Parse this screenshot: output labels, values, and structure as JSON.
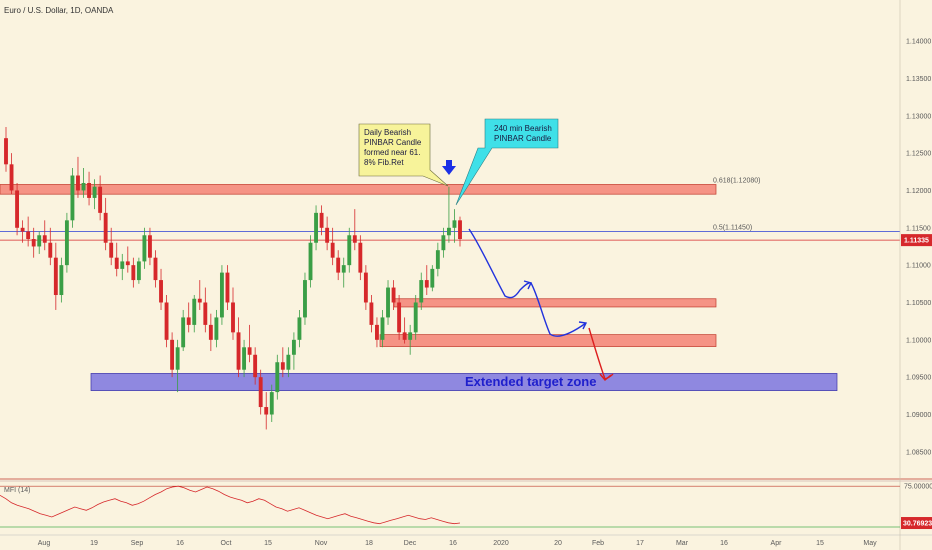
{
  "chart_data": [
    {
      "type": "candlestick",
      "title": "Euro / U.S. Dollar, 1D, OANDA",
      "price_axis": {
        "ticks": [
          "1.14000",
          "1.13500",
          "1.13000",
          "1.12500",
          "1.12000",
          "1.11500",
          "1.11000",
          "1.10500",
          "1.10000",
          "1.09500",
          "1.09000",
          "1.08500"
        ],
        "tick_values": [
          1.14,
          1.135,
          1.13,
          1.125,
          1.12,
          1.115,
          1.11,
          1.105,
          1.1,
          1.095,
          1.09,
          1.085
        ],
        "ylim": [
          1.0815,
          1.1455
        ],
        "last_price_label": "1.11335",
        "last_price": 1.11335
      },
      "time_axis": {
        "labels": [
          "Aug",
          "19",
          "Sep",
          "16",
          "Oct",
          "15",
          "Nov",
          "18",
          "Dec",
          "16",
          "2020",
          "20",
          "Feb",
          "17",
          "Mar",
          "16",
          "Apr",
          "15",
          "May"
        ]
      },
      "candles": [
        {
          "o": 1.127,
          "h": 1.1285,
          "l": 1.1225,
          "c": 1.1235
        },
        {
          "o": 1.1235,
          "h": 1.125,
          "l": 1.1195,
          "c": 1.12
        },
        {
          "o": 1.12,
          "h": 1.121,
          "l": 1.114,
          "c": 1.115
        },
        {
          "o": 1.115,
          "h": 1.116,
          "l": 1.113,
          "c": 1.1145
        },
        {
          "o": 1.1145,
          "h": 1.1165,
          "l": 1.1125,
          "c": 1.1135
        },
        {
          "o": 1.1135,
          "h": 1.115,
          "l": 1.111,
          "c": 1.1125
        },
        {
          "o": 1.1125,
          "h": 1.1145,
          "l": 1.1115,
          "c": 1.114
        },
        {
          "o": 1.114,
          "h": 1.116,
          "l": 1.112,
          "c": 1.113
        },
        {
          "o": 1.113,
          "h": 1.115,
          "l": 1.11,
          "c": 1.111
        },
        {
          "o": 1.111,
          "h": 1.113,
          "l": 1.104,
          "c": 1.106
        },
        {
          "o": 1.106,
          "h": 1.111,
          "l": 1.105,
          "c": 1.11
        },
        {
          "o": 1.11,
          "h": 1.117,
          "l": 1.109,
          "c": 1.116
        },
        {
          "o": 1.116,
          "h": 1.123,
          "l": 1.115,
          "c": 1.122
        },
        {
          "o": 1.122,
          "h": 1.1245,
          "l": 1.119,
          "c": 1.12
        },
        {
          "o": 1.12,
          "h": 1.123,
          "l": 1.119,
          "c": 1.121
        },
        {
          "o": 1.121,
          "h": 1.1225,
          "l": 1.118,
          "c": 1.119
        },
        {
          "o": 1.119,
          "h": 1.1215,
          "l": 1.1175,
          "c": 1.1205
        },
        {
          "o": 1.1205,
          "h": 1.122,
          "l": 1.116,
          "c": 1.117
        },
        {
          "o": 1.117,
          "h": 1.119,
          "l": 1.112,
          "c": 1.113
        },
        {
          "o": 1.113,
          "h": 1.115,
          "l": 1.11,
          "c": 1.111
        },
        {
          "o": 1.111,
          "h": 1.113,
          "l": 1.1085,
          "c": 1.1095
        },
        {
          "o": 1.1095,
          "h": 1.1115,
          "l": 1.108,
          "c": 1.1105
        },
        {
          "o": 1.1105,
          "h": 1.1125,
          "l": 1.109,
          "c": 1.11
        },
        {
          "o": 1.11,
          "h": 1.111,
          "l": 1.107,
          "c": 1.108
        },
        {
          "o": 1.108,
          "h": 1.111,
          "l": 1.1075,
          "c": 1.1105
        },
        {
          "o": 1.1105,
          "h": 1.115,
          "l": 1.1095,
          "c": 1.114
        },
        {
          "o": 1.114,
          "h": 1.115,
          "l": 1.11,
          "c": 1.111
        },
        {
          "o": 1.111,
          "h": 1.112,
          "l": 1.107,
          "c": 1.108
        },
        {
          "o": 1.108,
          "h": 1.1095,
          "l": 1.104,
          "c": 1.105
        },
        {
          "o": 1.105,
          "h": 1.106,
          "l": 1.099,
          "c": 1.1
        },
        {
          "o": 1.1,
          "h": 1.101,
          "l": 1.095,
          "c": 1.096
        },
        {
          "o": 1.096,
          "h": 1.1,
          "l": 1.093,
          "c": 1.099
        },
        {
          "o": 1.099,
          "h": 1.104,
          "l": 1.0985,
          "c": 1.103
        },
        {
          "o": 1.103,
          "h": 1.105,
          "l": 1.101,
          "c": 1.102
        },
        {
          "o": 1.102,
          "h": 1.106,
          "l": 1.101,
          "c": 1.1055
        },
        {
          "o": 1.1055,
          "h": 1.108,
          "l": 1.104,
          "c": 1.105
        },
        {
          "o": 1.105,
          "h": 1.107,
          "l": 1.101,
          "c": 1.102
        },
        {
          "o": 1.102,
          "h": 1.1035,
          "l": 1.0985,
          "c": 1.1
        },
        {
          "o": 1.1,
          "h": 1.104,
          "l": 1.099,
          "c": 1.103
        },
        {
          "o": 1.103,
          "h": 1.11,
          "l": 1.102,
          "c": 1.109
        },
        {
          "o": 1.109,
          "h": 1.11,
          "l": 1.104,
          "c": 1.105
        },
        {
          "o": 1.105,
          "h": 1.107,
          "l": 1.1,
          "c": 1.101
        },
        {
          "o": 1.101,
          "h": 1.103,
          "l": 1.095,
          "c": 1.096
        },
        {
          "o": 1.096,
          "h": 1.1,
          "l": 1.095,
          "c": 1.099
        },
        {
          "o": 1.099,
          "h": 1.102,
          "l": 1.097,
          "c": 1.098
        },
        {
          "o": 1.098,
          "h": 1.099,
          "l": 1.094,
          "c": 1.095
        },
        {
          "o": 1.095,
          "h": 1.096,
          "l": 1.09,
          "c": 1.091
        },
        {
          "o": 1.091,
          "h": 1.093,
          "l": 1.088,
          "c": 1.09
        },
        {
          "o": 1.09,
          "h": 1.094,
          "l": 1.089,
          "c": 1.093
        },
        {
          "o": 1.093,
          "h": 1.098,
          "l": 1.092,
          "c": 1.097
        },
        {
          "o": 1.097,
          "h": 1.099,
          "l": 1.095,
          "c": 1.096
        },
        {
          "o": 1.096,
          "h": 1.099,
          "l": 1.095,
          "c": 1.098
        },
        {
          "o": 1.098,
          "h": 1.101,
          "l": 1.096,
          "c": 1.1
        },
        {
          "o": 1.1,
          "h": 1.104,
          "l": 1.099,
          "c": 1.103
        },
        {
          "o": 1.103,
          "h": 1.109,
          "l": 1.102,
          "c": 1.108
        },
        {
          "o": 1.108,
          "h": 1.114,
          "l": 1.107,
          "c": 1.113
        },
        {
          "o": 1.113,
          "h": 1.118,
          "l": 1.112,
          "c": 1.117
        },
        {
          "o": 1.117,
          "h": 1.118,
          "l": 1.114,
          "c": 1.115
        },
        {
          "o": 1.115,
          "h": 1.1165,
          "l": 1.112,
          "c": 1.113
        },
        {
          "o": 1.113,
          "h": 1.115,
          "l": 1.11,
          "c": 1.111
        },
        {
          "o": 1.111,
          "h": 1.112,
          "l": 1.108,
          "c": 1.109
        },
        {
          "o": 1.109,
          "h": 1.111,
          "l": 1.107,
          "c": 1.11
        },
        {
          "o": 1.11,
          "h": 1.115,
          "l": 1.109,
          "c": 1.114
        },
        {
          "o": 1.114,
          "h": 1.1175,
          "l": 1.112,
          "c": 1.113
        },
        {
          "o": 1.113,
          "h": 1.114,
          "l": 1.108,
          "c": 1.109
        },
        {
          "o": 1.109,
          "h": 1.11,
          "l": 1.104,
          "c": 1.105
        },
        {
          "o": 1.105,
          "h": 1.106,
          "l": 1.101,
          "c": 1.102
        },
        {
          "o": 1.102,
          "h": 1.103,
          "l": 1.099,
          "c": 1.1
        },
        {
          "o": 1.1,
          "h": 1.104,
          "l": 1.099,
          "c": 1.103
        },
        {
          "o": 1.103,
          "h": 1.108,
          "l": 1.102,
          "c": 1.107
        },
        {
          "o": 1.107,
          "h": 1.108,
          "l": 1.104,
          "c": 1.105
        },
        {
          "o": 1.105,
          "h": 1.106,
          "l": 1.1,
          "c": 1.101
        },
        {
          "o": 1.101,
          "h": 1.103,
          "l": 1.0995,
          "c": 1.1
        },
        {
          "o": 1.1,
          "h": 1.102,
          "l": 1.098,
          "c": 1.101
        },
        {
          "o": 1.101,
          "h": 1.106,
          "l": 1.1,
          "c": 1.105
        },
        {
          "o": 1.105,
          "h": 1.109,
          "l": 1.104,
          "c": 1.108
        },
        {
          "o": 1.108,
          "h": 1.11,
          "l": 1.106,
          "c": 1.107
        },
        {
          "o": 1.107,
          "h": 1.11,
          "l": 1.1065,
          "c": 1.1095
        },
        {
          "o": 1.1095,
          "h": 1.113,
          "l": 1.1085,
          "c": 1.112
        },
        {
          "o": 1.112,
          "h": 1.115,
          "l": 1.111,
          "c": 1.114
        },
        {
          "o": 1.114,
          "h": 1.1205,
          "l": 1.113,
          "c": 1.115
        },
        {
          "o": 1.115,
          "h": 1.1175,
          "l": 1.113,
          "c": 1.116
        },
        {
          "o": 1.116,
          "h": 1.1165,
          "l": 1.1125,
          "c": 1.1135
        }
      ]
    },
    {
      "type": "line",
      "title": "MFI (14)",
      "ylim": [
        20,
        80
      ],
      "tick_labels": [
        "75.00000"
      ],
      "tick_values": [
        75
      ],
      "last_value_label": "30.76923",
      "last_value": 30.76923,
      "series": [
        {
          "values": [
            64,
            60,
            55,
            52,
            50,
            48,
            45,
            42,
            40,
            38,
            41,
            44,
            47,
            50,
            48,
            46,
            49,
            53,
            56,
            58,
            60,
            57,
            55,
            52,
            54,
            57,
            61,
            65,
            68,
            72,
            74,
            75,
            73,
            70,
            68,
            71,
            74,
            72,
            69,
            65,
            62,
            60,
            58,
            55,
            57,
            60,
            58,
            54,
            50,
            48,
            45,
            47,
            49,
            46,
            43,
            40,
            38,
            36,
            38,
            40,
            42,
            39,
            37,
            35,
            33,
            31,
            30,
            32,
            34,
            36,
            38,
            40,
            38,
            36,
            35,
            37,
            35,
            33,
            31,
            30,
            30.8
          ]
        }
      ]
    }
  ],
  "levels": {
    "fib_618_label": "0.618(1.12080)",
    "fib_618": 1.1208,
    "fib_05_label": "0.5(1.11450)",
    "fib_05": 1.1145
  },
  "zones": [
    {
      "name": "resistance",
      "from": 1.1195,
      "to": 1.1208,
      "color": "#f47a6e"
    },
    {
      "name": "support-1",
      "from": 1.1044,
      "to": 1.1055,
      "color": "#f47a6e"
    },
    {
      "name": "support-2",
      "from": 1.0991,
      "to": 1.1007,
      "color": "#f47a6e"
    },
    {
      "name": "extended-target",
      "from": 1.0932,
      "to": 1.0955,
      "color": "#7b74e0"
    }
  ],
  "annotations": {
    "daily_callout": [
      "Daily Bearish",
      "PINBAR Candle",
      "formed near 61.",
      "8% Fib.Ret"
    ],
    "min240_callout": [
      "240 min Bearish",
      "PINBAR Candle"
    ],
    "target_label": "Extended target zone"
  },
  "colors": {
    "background": "#faf3df",
    "up_candle": "#3a9e46",
    "down_candle": "#d6282b",
    "zone_red": "#f47a6e",
    "zone_blue": "#7b74e0",
    "path_blue": "#2233dd",
    "path_red": "#dd1f1f",
    "yellow_callout": "#f7f39a",
    "cyan_callout": "#3fe0e8"
  }
}
